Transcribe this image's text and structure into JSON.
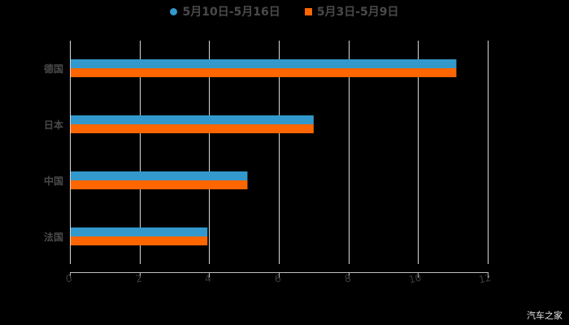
{
  "legend": [
    {
      "label": "5月10日-5月16日",
      "color": "#3399cc",
      "shape": "circle"
    },
    {
      "label": "5月3日-5月9日",
      "color": "#ff6600",
      "shape": "square"
    }
  ],
  "watermark": "汽车之家",
  "chart_data": {
    "type": "bar",
    "orientation": "horizontal",
    "title": "",
    "xlabel": "",
    "ylabel": "",
    "categories": [
      "德国",
      "日本",
      "中国",
      "法国"
    ],
    "series": [
      {
        "name": "5月10日-5月16日",
        "color": "#3399cc",
        "values": [
          11.1,
          7.0,
          5.1,
          3.95
        ]
      },
      {
        "name": "5月3日-5月9日",
        "color": "#ff6600",
        "values": [
          11.1,
          7.0,
          5.1,
          3.95
        ]
      }
    ],
    "xlim": [
      0,
      12
    ],
    "xticks": [
      "0",
      "2",
      "4",
      "6",
      "8",
      "10",
      "12"
    ],
    "grid": true,
    "legend_position": "top"
  }
}
